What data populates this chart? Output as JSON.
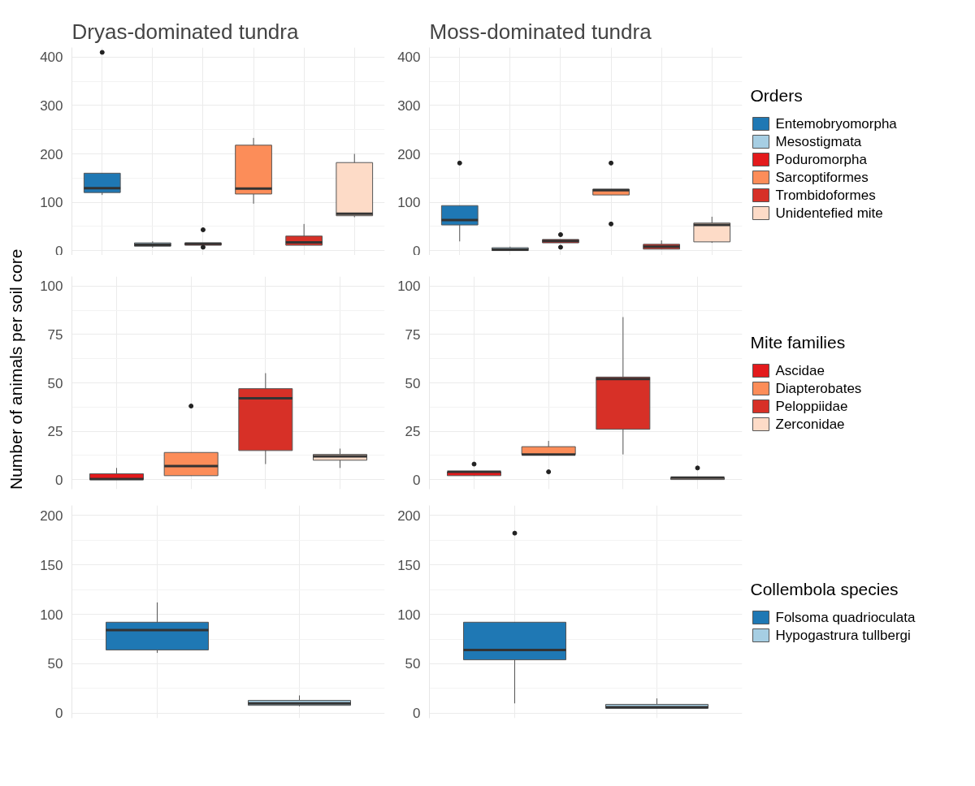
{
  "chart_data": [
    {
      "type": "box",
      "title": "Dryas-dominated tundra",
      "categories": [
        null,
        null,
        null,
        null,
        null,
        null
      ],
      "ylim": [
        -20,
        420
      ],
      "yticks": [
        0,
        100,
        200,
        300,
        400
      ],
      "grid": true,
      "tick_labels": "y",
      "series": [
        {
          "color": "#1f78b4",
          "boxes": [
            {
              "low": 115,
              "q1": 120,
              "median": 129,
              "q3": 160,
              "high": 160,
              "outliers": [
                410
              ]
            },
            null,
            null,
            null,
            null,
            null
          ]
        },
        {
          "color": "#a6cee3",
          "boxes": [
            null,
            {
              "low": 6,
              "q1": 9,
              "median": 12,
              "q3": 16,
              "high": 19
            },
            null,
            null,
            null,
            null
          ]
        },
        {
          "color": "#e31a1c",
          "boxes": [
            null,
            null,
            {
              "low": 11,
              "q1": 11,
              "median": 14,
              "q3": 16,
              "high": 16,
              "outliers": [
                43,
                7
              ]
            },
            null,
            null,
            null
          ]
        },
        {
          "color": "#fc8d59",
          "boxes": [
            null,
            null,
            null,
            {
              "low": 97,
              "q1": 117,
              "median": 128,
              "q3": 218,
              "high": 233
            },
            null,
            null
          ]
        },
        {
          "color": "#d73027",
          "boxes": [
            null,
            null,
            null,
            null,
            {
              "low": 11,
              "q1": 11,
              "median": 17,
              "q3": 30,
              "high": 55
            },
            null
          ]
        },
        {
          "color": "#fddbc7",
          "boxes": [
            null,
            null,
            null,
            null,
            null,
            {
              "low": 69,
              "q1": 72,
              "median": 76,
              "q3": 182,
              "high": 200
            }
          ]
        }
      ]
    },
    {
      "type": "box",
      "title": "Moss-dominated tundra",
      "categories": [
        null,
        null,
        null,
        null,
        null,
        null
      ],
      "ylim": [
        -20,
        420
      ],
      "yticks": [
        0,
        100,
        200,
        300,
        400
      ],
      "grid": true,
      "tick_labels": "y",
      "legend": "right",
      "legend_title": "Orders",
      "series": [
        {
          "name": "Entemobryomorpha",
          "color": "#1f78b4",
          "boxes": [
            {
              "low": 19,
              "q1": 53,
              "median": 63,
              "q3": 93,
              "high": 93,
              "outliers": [
                181
              ]
            },
            null,
            null,
            null,
            null,
            null
          ]
        },
        {
          "name": "Mesostigmata",
          "color": "#a6cee3",
          "boxes": [
            null,
            {
              "low": 0,
              "q1": 0,
              "median": 2,
              "q3": 6,
              "high": 8
            },
            null,
            null,
            null,
            null
          ]
        },
        {
          "name": "Poduromorpha",
          "color": "#e31a1c",
          "boxes": [
            null,
            null,
            {
              "low": 16,
              "q1": 16,
              "median": 20,
              "q3": 23,
              "high": 23,
              "outliers": [
                33,
                7
              ]
            },
            null,
            null,
            null
          ]
        },
        {
          "name": "Sarcoptiformes",
          "color": "#fc8d59",
          "boxes": [
            null,
            null,
            null,
            {
              "low": 115,
              "q1": 115,
              "median": 125,
              "q3": 127,
              "high": 127,
              "outliers": [
                181,
                55
              ]
            },
            null,
            null
          ]
        },
        {
          "name": "Trombidoformes",
          "color": "#d73027",
          "boxes": [
            null,
            null,
            null,
            null,
            {
              "low": 3,
              "q1": 3,
              "median": 8,
              "q3": 13,
              "high": 21
            },
            null
          ]
        },
        {
          "name": "Unidentefied mite",
          "color": "#fddbc7",
          "boxes": [
            null,
            null,
            null,
            null,
            null,
            {
              "low": 16,
              "q1": 18,
              "median": 53,
              "q3": 57,
              "high": 70
            }
          ]
        }
      ]
    },
    {
      "type": "box",
      "ylabel": "Number of animals per soil core",
      "categories": [
        null,
        null,
        null,
        null
      ],
      "ylim": [
        -5,
        105
      ],
      "yticks": [
        0,
        25,
        50,
        75,
        100
      ],
      "grid": true,
      "tick_labels": "y",
      "series": [
        {
          "color": "#e31a1c",
          "boxes": [
            {
              "low": 0,
              "q1": 0,
              "median": 0.3,
              "q3": 3,
              "high": 6
            },
            null,
            null,
            null
          ]
        },
        {
          "color": "#fc8d59",
          "boxes": [
            null,
            {
              "low": 2,
              "q1": 2,
              "median": 7,
              "q3": 14,
              "high": 14,
              "outliers": [
                38
              ]
            },
            null,
            null
          ]
        },
        {
          "color": "#d73027",
          "boxes": [
            null,
            null,
            {
              "low": 8,
              "q1": 15,
              "median": 42,
              "q3": 47,
              "high": 55
            },
            null
          ]
        },
        {
          "color": "#fddbc7",
          "boxes": [
            null,
            null,
            null,
            {
              "low": 6,
              "q1": 10,
              "median": 12,
              "q3": 13,
              "high": 16
            }
          ]
        }
      ]
    },
    {
      "type": "box",
      "categories": [
        null,
        null,
        null,
        null
      ],
      "ylim": [
        -5,
        105
      ],
      "yticks": [
        0,
        25,
        50,
        75,
        100
      ],
      "grid": true,
      "tick_labels": "y",
      "legend": "right",
      "legend_title": "Mite families",
      "series": [
        {
          "name": "Ascidae",
          "color": "#e31a1c",
          "boxes": [
            {
              "low": 2,
              "q1": 2,
              "median": 4,
              "q3": 4,
              "high": 4,
              "outliers": [
                8
              ]
            },
            null,
            null,
            null
          ]
        },
        {
          "name": "Diapterobates",
          "color": "#fc8d59",
          "boxes": [
            null,
            {
              "low": 13,
              "q1": 13,
              "median": 13,
              "q3": 17,
              "high": 20,
              "outliers": [
                4
              ]
            },
            null,
            null
          ]
        },
        {
          "name": "Peloppiidae",
          "color": "#d73027",
          "boxes": [
            null,
            null,
            {
              "low": 13,
              "q1": 26,
              "median": 52,
              "q3": 53,
              "high": 84
            },
            null
          ]
        },
        {
          "name": "Zerconidae",
          "color": "#fddbc7",
          "boxes": [
            null,
            null,
            null,
            {
              "low": 0,
              "q1": 0,
              "median": 1,
              "q3": 1,
              "high": 1,
              "outliers": [
                6
              ]
            }
          ]
        }
      ]
    },
    {
      "type": "box",
      "categories": [
        null,
        null
      ],
      "ylim": [
        -5,
        210
      ],
      "yticks": [
        0,
        50,
        100,
        150,
        200
      ],
      "grid": true,
      "tick_labels": "y",
      "series": [
        {
          "color": "#1f78b4",
          "boxes": [
            {
              "low": 61,
              "q1": 64,
              "median": 84,
              "q3": 92,
              "high": 112
            },
            null
          ]
        },
        {
          "color": "#a6cee3",
          "boxes": [
            null,
            {
              "low": 7,
              "q1": 8,
              "median": 10,
              "q3": 13,
              "high": 18
            }
          ]
        }
      ]
    },
    {
      "type": "box",
      "categories": [
        null,
        null
      ],
      "ylim": [
        -5,
        210
      ],
      "yticks": [
        0,
        50,
        100,
        150,
        200
      ],
      "grid": true,
      "tick_labels": "y",
      "legend": "right",
      "legend_title": "Collembola species",
      "series": [
        {
          "name": "Folsoma quadrioculata",
          "color": "#1f78b4",
          "boxes": [
            {
              "low": 10,
              "q1": 54,
              "median": 64,
              "q3": 92,
              "high": 92,
              "outliers": [
                182
              ]
            },
            null
          ]
        },
        {
          "name": "Hypogastrura tullbergi",
          "color": "#a6cee3",
          "boxes": [
            null,
            {
              "low": 5,
              "q1": 5,
              "median": 6,
              "q3": 9,
              "high": 15
            }
          ]
        }
      ]
    }
  ]
}
